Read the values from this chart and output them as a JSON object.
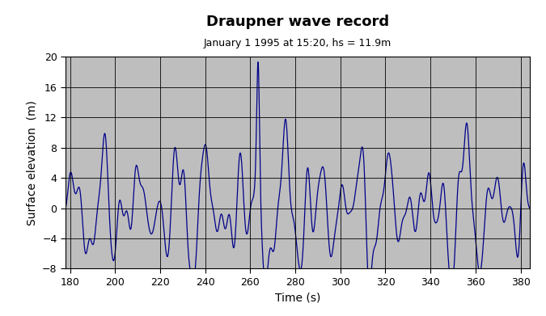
{
  "title": "Draupner wave record",
  "subtitle": "January 1 1995 at 15:20, hs = 11.9m",
  "xlabel": "Time (s)",
  "ylabel": "Surface elevation  (m)",
  "xlim": [
    178,
    384
  ],
  "ylim": [
    -8,
    20
  ],
  "xticks": [
    180,
    200,
    220,
    240,
    260,
    280,
    300,
    320,
    340,
    360,
    380
  ],
  "yticks": [
    -8,
    -4,
    0,
    4,
    8,
    12,
    16,
    20
  ],
  "line_color": "#00008B",
  "bg_color": "#BEBEBE",
  "fig_bg": "#FFFFFF",
  "title_fontsize": 13,
  "subtitle_fontsize": 9,
  "label_fontsize": 10,
  "tick_fontsize": 9
}
